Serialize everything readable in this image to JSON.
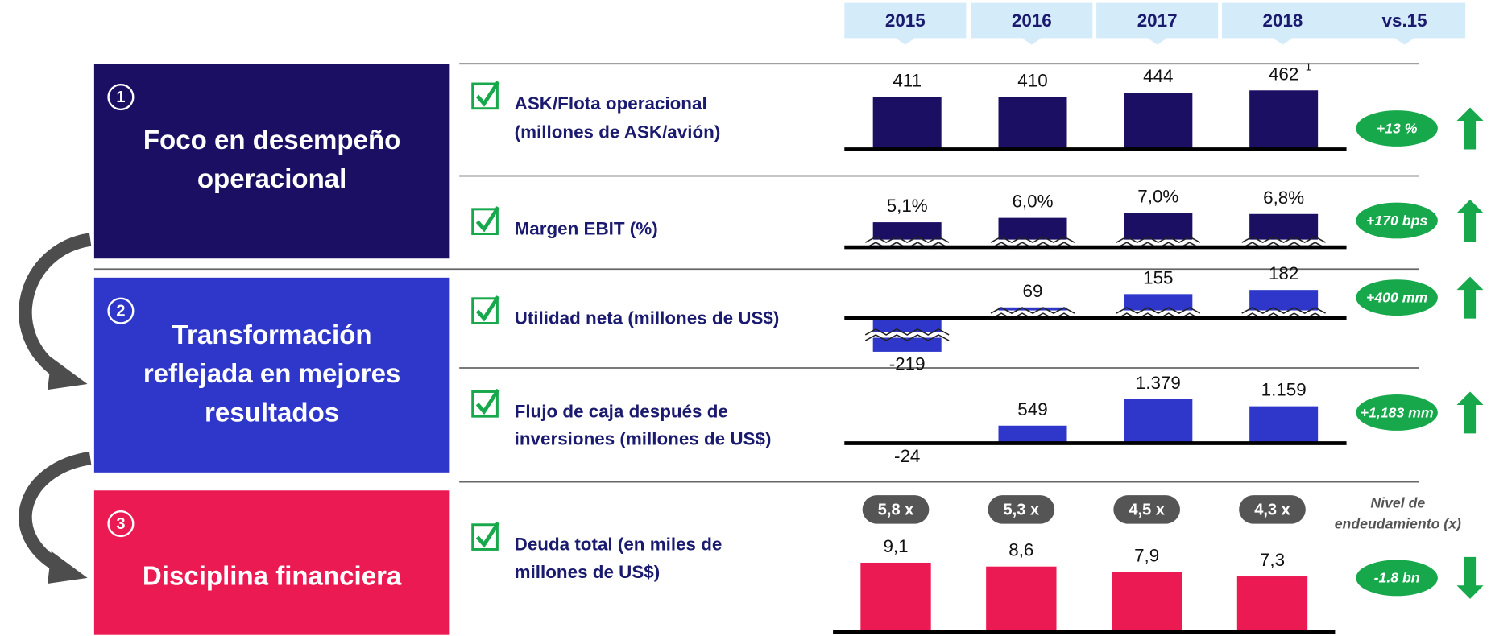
{
  "header": {
    "columns": [
      "2015",
      "2016",
      "2017",
      "2018",
      "vs.15"
    ]
  },
  "sections": [
    {
      "number": "1",
      "title": [
        "Foco en desempeño",
        "operacional"
      ],
      "color": "#1a0f63",
      "metrics": [
        {
          "label": [
            "ASK/Flota operacional",
            "(millones de ASK/avión)"
          ],
          "values": [
            411,
            410,
            444,
            462
          ],
          "value_notes": [
            null,
            null,
            null,
            "1"
          ],
          "change": "+13 %",
          "direction": "up"
        },
        {
          "label": [
            "Margen EBIT (%)"
          ],
          "values": [
            5.1,
            6.0,
            7.0,
            6.8
          ],
          "value_labels": [
            "5,1%",
            "6,0%",
            "7,0%",
            "6,8%"
          ],
          "change": "+170 bps",
          "direction": "up",
          "broken": true
        }
      ]
    },
    {
      "number": "2",
      "title": [
        "Transformación",
        "reflejada en mejores",
        "resultados"
      ],
      "color": "#2e37c9",
      "metrics": [
        {
          "label": [
            "Utilidad neta (millones de US$)"
          ],
          "values": [
            -219,
            69,
            155,
            182
          ],
          "change": "+400 mm",
          "direction": "up",
          "broken": true
        },
        {
          "label": [
            "Flujo de caja después de",
            "inversiones (millones de US$)"
          ],
          "values": [
            -24,
            549,
            1379,
            1159
          ],
          "value_labels": [
            "-24",
            "549",
            "1.379",
            "1.159"
          ],
          "change": "+1,183 mm",
          "direction": "up"
        }
      ]
    },
    {
      "number": "3",
      "title": [
        "Disciplina financiera"
      ],
      "color": "#ec1a53",
      "metrics": [
        {
          "label": [
            "Deuda total (en miles de",
            "millones de US$)"
          ],
          "values": [
            9.1,
            8.6,
            7.9,
            7.3
          ],
          "value_labels": [
            "9,1",
            "8,6",
            "7,9",
            "7,3"
          ],
          "change": "-1.8 bn",
          "direction": "down",
          "leverage": [
            "5,8 x",
            "5,3 x",
            "4,5 x",
            "4,3 x"
          ],
          "leverage_label": [
            "Nivel de",
            "endeudamiento (x)"
          ]
        }
      ]
    }
  ]
}
